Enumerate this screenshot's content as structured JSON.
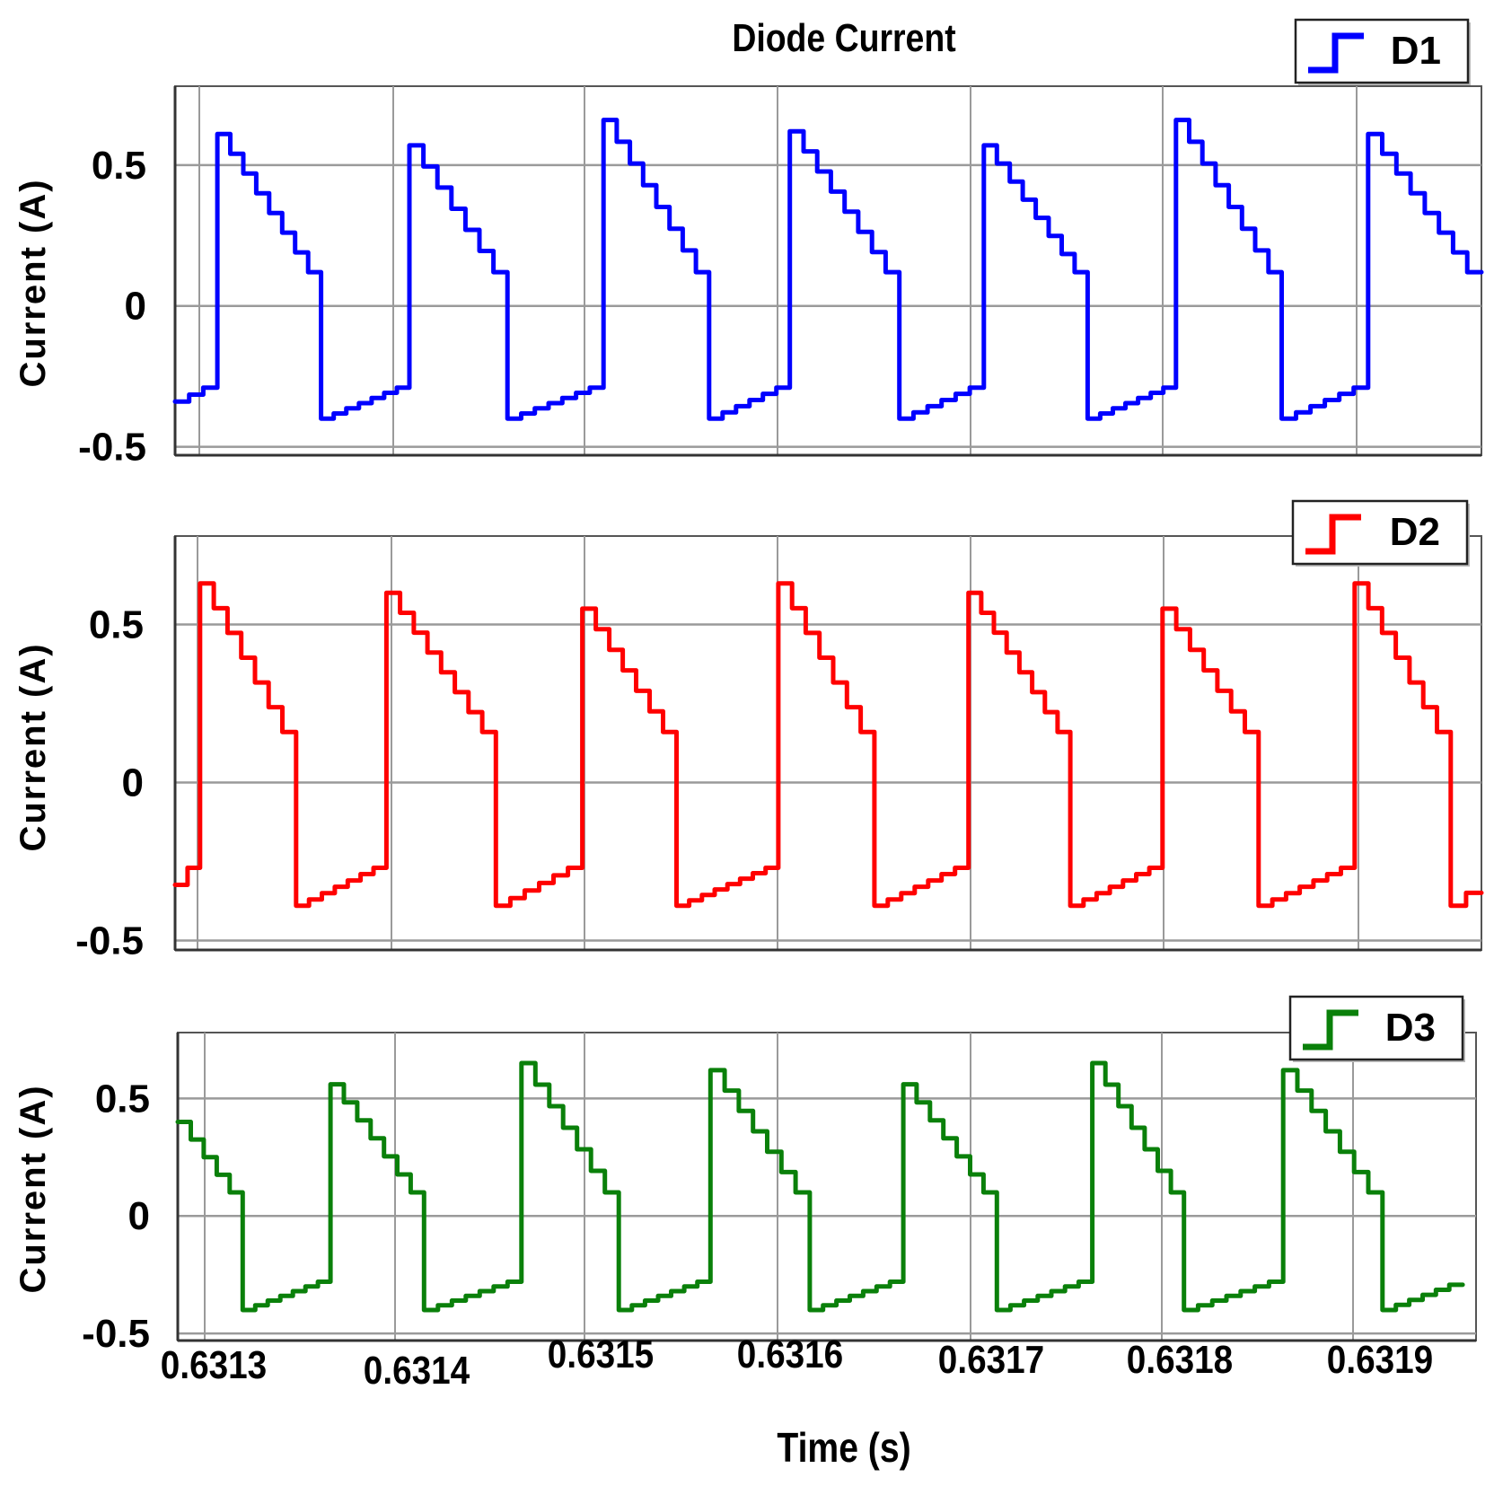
{
  "chart_data": [
    {
      "type": "line",
      "title": "Diode Current",
      "ylabel": "Current  (A)",
      "xlabel": "",
      "ylim": [
        -0.53,
        0.78
      ],
      "yticks": [
        "0.5",
        "0",
        "-0.5"
      ],
      "ytick_values": [
        0.5,
        0,
        -0.5
      ],
      "xlim": [
        0.631288,
        0.631968
      ],
      "xgrid": [
        0.6313,
        0.6314,
        0.6315,
        0.6316,
        0.6317,
        0.6318,
        0.6319
      ],
      "grid": true,
      "legend_position": "top-right",
      "series": [
        {
          "name": "D1",
          "color": "#0000ff",
          "period": 0.0001,
          "rise_times": [
            0.63131,
            0.63141,
            0.631511,
            0.631608,
            0.631709,
            0.631809,
            0.631909
          ],
          "fall_times": [
            0.631364,
            0.631461,
            0.631566,
            0.631665,
            0.631763,
            0.631864
          ],
          "peaks": [
            0.61,
            0.57,
            0.66,
            0.62,
            0.57,
            0.66,
            0.61
          ],
          "high_end": 0.12,
          "low_start": -0.4,
          "low_end": -0.29,
          "x_start": 0.631288,
          "x_end": 0.631968
        },
        {
          "name": "D2",
          "color": "#ff0000",
          "period": 0.0001,
          "rise_times": [
            0.631301,
            0.631398,
            0.6315,
            0.631602,
            0.631701,
            0.631802,
            0.631902
          ],
          "fall_times": [
            0.631351,
            0.631455,
            0.631549,
            0.631652,
            0.631754,
            0.631852,
            0.631952
          ],
          "peaks": [
            0.63,
            0.6,
            0.55,
            0.63,
            0.6,
            0.55,
            0.63
          ],
          "high_end": 0.16,
          "low_start": -0.39,
          "low_end": -0.27,
          "x_start": 0.631288,
          "x_end": 0.631968
        },
        {
          "name": "D3",
          "color": "#0a800a",
          "period": 0.0001,
          "rise_times": [
            0.631368,
            0.631468,
            0.631567,
            0.631668,
            0.631767,
            0.631867
          ],
          "fall_times": [
            0.631322,
            0.631417,
            0.631519,
            0.631619,
            0.631717,
            0.631815,
            0.631919
          ],
          "peaks": [
            0.56,
            0.65,
            0.62,
            0.56,
            0.65,
            0.62
          ],
          "start_value": 0.4,
          "high_end": 0.1,
          "low_start": -0.4,
          "low_end": -0.28,
          "x_start": 0.631288,
          "x_end": 0.631961
        }
      ]
    },
    {
      "type": "axis",
      "xlabel": "Time (s)",
      "xticks": [
        "0.6313",
        "0.6314",
        "0.6315",
        "0.6316",
        "0.6317",
        "0.6318",
        "0.6319"
      ]
    }
  ]
}
